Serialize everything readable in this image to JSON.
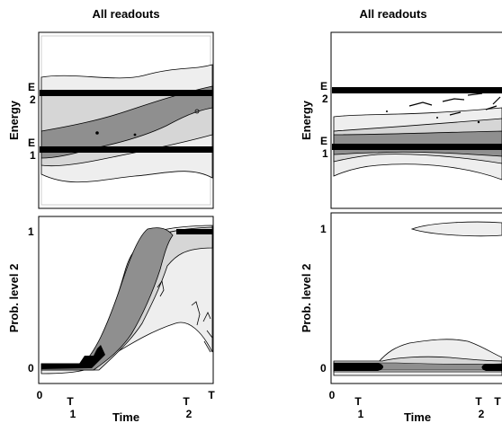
{
  "chart_data": [
    {
      "type": "contour",
      "title": "All readouts",
      "panels": [
        {
          "id": "energy",
          "ylabel": "Energy",
          "y_ticks": [
            {
              "main": "E",
              "sub": "2"
            },
            {
              "main": "E",
              "sub": "1"
            }
          ],
          "levels": [
            "E2",
            "E1"
          ],
          "fill_shades": [
            "#eeeeee",
            "#d6d6d6",
            "#8f8f8f",
            "#000000"
          ]
        },
        {
          "id": "prob",
          "ylabel": "Prob. level 2",
          "xlabel": "Time",
          "y_ticks": [
            "0",
            "1"
          ],
          "ylim": [
            0,
            1
          ],
          "x_ticks": [
            {
              "main": "0",
              "sub": ""
            },
            {
              "main": "T",
              "sub": "1"
            },
            {
              "main": "T",
              "sub": "2"
            },
            {
              "main": "T",
              "sub": ""
            }
          ],
          "fill_shades": [
            "#eeeeee",
            "#d6d6d6",
            "#8f8f8f",
            "#000000"
          ]
        }
      ]
    },
    {
      "type": "contour",
      "title": "All readouts",
      "panels": [
        {
          "id": "energy",
          "ylabel": "Energy",
          "y_ticks": [
            {
              "main": "E",
              "sub": "2"
            },
            {
              "main": "E",
              "sub": "1"
            }
          ],
          "levels": [
            "E2",
            "E1"
          ],
          "fill_shades": [
            "#eeeeee",
            "#d6d6d6",
            "#8f8f8f",
            "#000000"
          ]
        },
        {
          "id": "prob",
          "ylabel": "Prob. level 2",
          "xlabel": "Time",
          "y_ticks": [
            "0",
            "1"
          ],
          "ylim": [
            0,
            1
          ],
          "x_ticks": [
            {
              "main": "0",
              "sub": ""
            },
            {
              "main": "T",
              "sub": "1"
            },
            {
              "main": "T",
              "sub": "2"
            },
            {
              "main": "T",
              "sub": ""
            }
          ],
          "fill_shades": [
            "#eeeeee",
            "#d6d6d6",
            "#8f8f8f",
            "#000000"
          ]
        }
      ]
    }
  ]
}
